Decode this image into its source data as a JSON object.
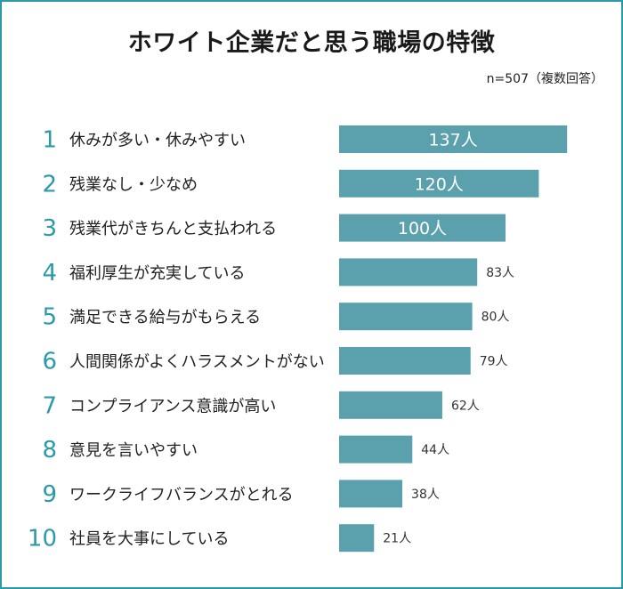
{
  "chart_data": {
    "type": "bar",
    "orientation": "horizontal",
    "title": "ホワイト企業だと思う職場の特徴",
    "note": "n=507（複数回答）",
    "unit": "人",
    "bar_color": "#5aa1ad",
    "rank_color": "#2a9aa8",
    "categories": [
      "休みが多い・休みやすい",
      "残業なし・少なめ",
      "残業代がきちんと支払われる",
      "福利厚生が充実している",
      "満足できる給与がもらえる",
      "人間関係がよくハラスメントがない",
      "コンプライアンス意識が高い",
      "意見を言いやすい",
      "ワークライフバランスがとれる",
      "社員を大事にしている"
    ],
    "ranks": [
      "1",
      "2",
      "3",
      "4",
      "5",
      "6",
      "7",
      "8",
      "9",
      "10"
    ],
    "values": [
      137,
      120,
      100,
      83,
      80,
      79,
      62,
      44,
      38,
      21
    ],
    "value_labels": [
      "137人",
      "120人",
      "100人",
      "83人",
      "80人",
      "79人",
      "62人",
      "44人",
      "38人",
      "21人"
    ]
  }
}
